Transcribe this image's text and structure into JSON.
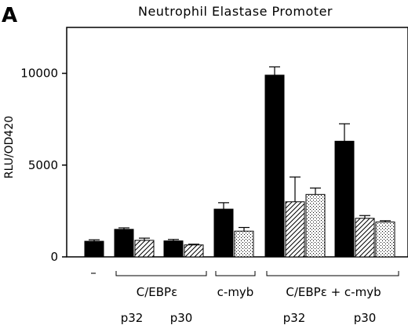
{
  "chart_data": {
    "type": "bar",
    "panel_label": "A",
    "title": "Neutrophil Elastase Promoter",
    "ylabel": "RLU/OD420",
    "ylim": [
      0,
      12500
    ],
    "yticks": [
      0,
      5000,
      10000
    ],
    "ytick_labels": [
      "0",
      "5000",
      "10000"
    ],
    "grid": false,
    "legend": "none",
    "fills": {
      "solid": "#000000",
      "hatched": "diagonal-hatch",
      "dotted": "dotted"
    },
    "bars": [
      {
        "group": 0,
        "fill": "solid",
        "value": 850,
        "error": 80
      },
      {
        "group": 1,
        "fill": "solid",
        "value": 1500,
        "error": 80
      },
      {
        "group": 1,
        "fill": "hatched",
        "value": 900,
        "error": 120
      },
      {
        "group": 2,
        "fill": "solid",
        "value": 870,
        "error": 80
      },
      {
        "group": 2,
        "fill": "hatched",
        "value": 650,
        "error": 40
      },
      {
        "group": 3,
        "fill": "solid",
        "value": 2600,
        "error": 350
      },
      {
        "group": 3,
        "fill": "dotted",
        "value": 1400,
        "error": 200
      },
      {
        "group": 4,
        "fill": "solid",
        "value": 9900,
        "error": 450
      },
      {
        "group": 4,
        "fill": "hatched",
        "value": 3000,
        "error": 1350
      },
      {
        "group": 4,
        "fill": "dotted",
        "value": 3400,
        "error": 350
      },
      {
        "group": 5,
        "fill": "solid",
        "value": 6300,
        "error": 950
      },
      {
        "group": 5,
        "fill": "hatched",
        "value": 2100,
        "error": 150
      },
      {
        "group": 5,
        "fill": "dotted",
        "value": 1900,
        "error": 70
      }
    ],
    "category_labels": [
      {
        "text": "–"
      },
      {
        "text": "C/EBPε"
      },
      {
        "text": "p32"
      },
      {
        "text": "p30"
      },
      {
        "text": "c-myb"
      },
      {
        "text": "C/EBPε  +  c-myb"
      },
      {
        "text": "p32"
      },
      {
        "text": "p30"
      }
    ]
  }
}
